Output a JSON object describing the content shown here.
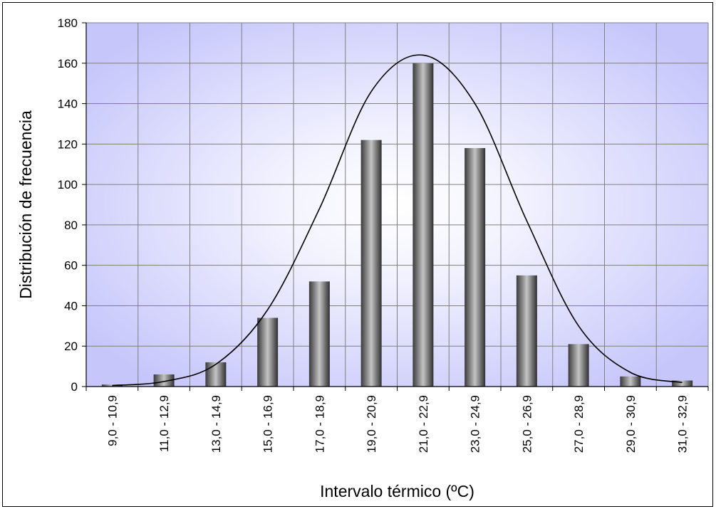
{
  "chart_data": {
    "type": "bar",
    "title": "",
    "xlabel": "Intervalo térmico (ºC)",
    "ylabel": "Distribución de frecuencia",
    "ylim": [
      0,
      180
    ],
    "yticks": [
      0,
      20,
      40,
      60,
      80,
      100,
      120,
      140,
      160,
      180
    ],
    "grid": true,
    "legend": "none",
    "categories": [
      "9,0 - 10,9",
      "11,0 - 12,9",
      "13,0 - 14,9",
      "15,0 - 16,9",
      "17,0 - 18,9",
      "19,0 - 20,9",
      "21,0 - 22,9",
      "23,0 - 24,9",
      "25,0 - 26,9",
      "27,0 - 28,9",
      "29,0 - 30,9",
      "31,0 - 32,9"
    ],
    "values": [
      1,
      6,
      12,
      34,
      52,
      122,
      160,
      118,
      55,
      21,
      5,
      3
    ],
    "curve": {
      "type": "line",
      "values": [
        0.5,
        2.5,
        11,
        38,
        88,
        146,
        164,
        140,
        82,
        30,
        7,
        2
      ]
    },
    "colors": {
      "plot_background_edge": "#c8c8ff",
      "plot_background_center": "#ffffff",
      "bar_dark": "#3a3a3a",
      "bar_light": "#bdbdbd",
      "grid": "#808080",
      "curve": "#000000"
    }
  }
}
